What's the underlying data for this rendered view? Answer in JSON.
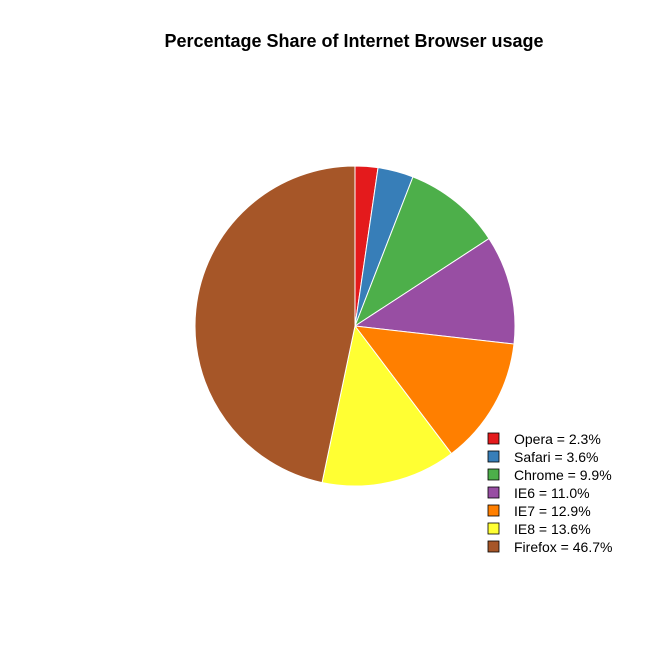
{
  "chart_data": {
    "type": "pie",
    "title": "Percentage Share of Internet Browser usage",
    "slices": [
      {
        "label": "Opera",
        "value": 2.3,
        "legend": "Opera = 2.3%",
        "color": "#E41A1C"
      },
      {
        "label": "Safari",
        "value": 3.6,
        "legend": "Safari = 3.6%",
        "color": "#377EB8"
      },
      {
        "label": "Chrome",
        "value": 9.9,
        "legend": "Chrome = 9.9%",
        "color": "#4DAF4A"
      },
      {
        "label": "IE6",
        "value": 11.0,
        "legend": "IE6 = 11.0%",
        "color": "#984EA3"
      },
      {
        "label": "IE7",
        "value": 12.9,
        "legend": "IE7 = 12.9%",
        "color": "#FF7F00"
      },
      {
        "label": "IE8",
        "value": 13.6,
        "legend": "IE8 = 13.6%",
        "color": "#FFFF33"
      },
      {
        "label": "Firefox",
        "value": 46.7,
        "legend": "Firefox = 46.7%",
        "color": "#A65628"
      }
    ],
    "start_angle": "12 o'clock",
    "direction": "clockwise",
    "legend_position": "bottom-right"
  }
}
